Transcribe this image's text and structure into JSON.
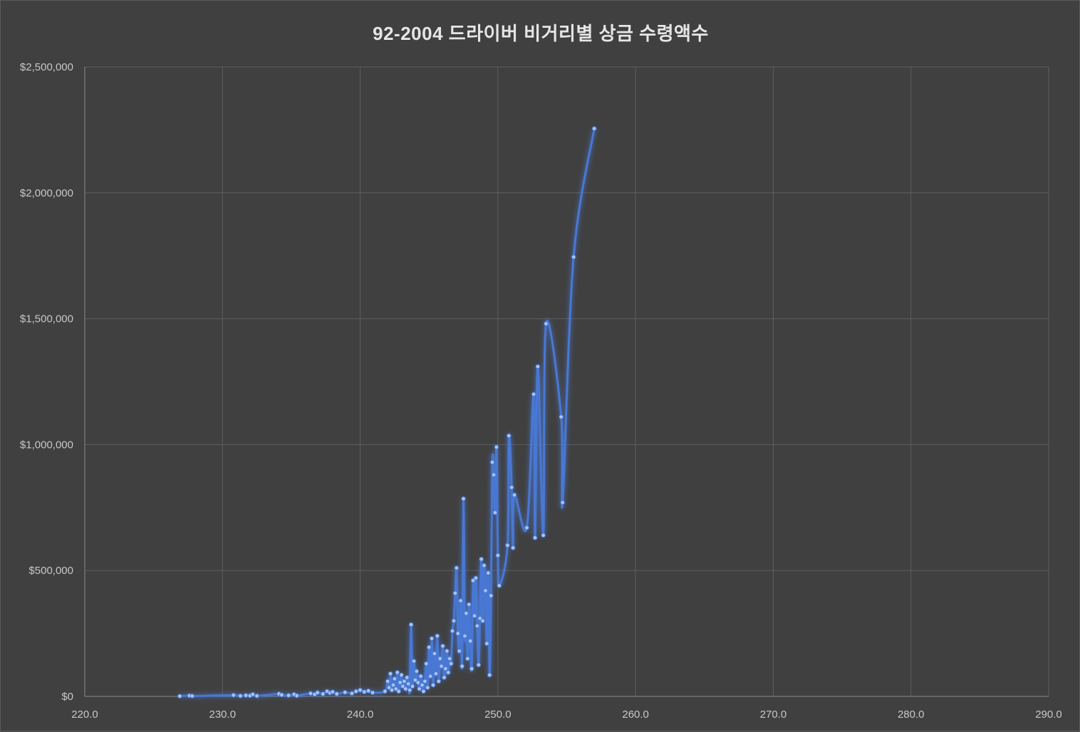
{
  "chart_data": {
    "type": "scatter",
    "title": "92-2004 드라이버 비거리별 상금 수령액수",
    "xlabel": "",
    "ylabel": "",
    "xlim": [
      220,
      290
    ],
    "ylim": [
      0,
      2500000
    ],
    "x_ticks": [
      "220.0",
      "230.0",
      "240.0",
      "250.0",
      "260.0",
      "270.0",
      "280.0",
      "290.0"
    ],
    "y_ticks": [
      "$0",
      "$500,000",
      "$1,000,000",
      "$1,500,000",
      "$2,000,000",
      "$2,500,000"
    ],
    "grid": true,
    "legend": "none",
    "line_color": "#4a78d4",
    "marker_color": "#a9c4f2",
    "series": [
      {
        "x": [
          226.9,
          227.6,
          227.8,
          230.8,
          231.3,
          231.7,
          232.0,
          232.2,
          232.5,
          234.1,
          234.3,
          234.8,
          235.2,
          235.4,
          236.4,
          236.7,
          236.9,
          237.3,
          237.6,
          237.8,
          238.0,
          238.3,
          238.9,
          239.4,
          239.7,
          240.0,
          240.3,
          240.6,
          240.9,
          241.8,
          242.0,
          242.1,
          242.2,
          242.3,
          242.4,
          242.5,
          242.6,
          242.7,
          242.8,
          242.9,
          243.0,
          243.1,
          243.2,
          243.3,
          243.4,
          243.5,
          243.6,
          243.7,
          243.8,
          243.9,
          244.0,
          244.1,
          244.2,
          244.3,
          244.4,
          244.5,
          244.6,
          244.7,
          244.8,
          244.9,
          245.0,
          245.1,
          245.2,
          245.3,
          245.4,
          245.5,
          245.6,
          245.7,
          245.8,
          245.9,
          246.0,
          246.1,
          246.2,
          246.3,
          246.4,
          246.5,
          246.6,
          246.7,
          246.8,
          246.9,
          247.0,
          247.1,
          247.2,
          247.3,
          247.4,
          247.5,
          247.6,
          247.7,
          247.8,
          247.9,
          248.0,
          248.1,
          248.2,
          248.3,
          248.4,
          248.5,
          248.6,
          248.7,
          248.8,
          248.9,
          249.0,
          249.1,
          249.2,
          249.3,
          249.4,
          249.5,
          249.6,
          249.7,
          249.8,
          249.9,
          250.0,
          250.1,
          250.7,
          250.8,
          251.0,
          251.1,
          251.2,
          252.1,
          252.6,
          252.7,
          252.9,
          253.3,
          253.5,
          254.6,
          254.7,
          255.5,
          257.0
        ],
        "y": [
          1000,
          3000,
          1500,
          5000,
          2000,
          4000,
          3000,
          8000,
          2000,
          10000,
          6000,
          4000,
          8000,
          3000,
          12000,
          8000,
          15000,
          10000,
          20000,
          14000,
          18000,
          10000,
          16000,
          12000,
          20000,
          25000,
          18000,
          22000,
          15000,
          20000,
          60000,
          35000,
          90000,
          25000,
          45000,
          70000,
          30000,
          95000,
          20000,
          55000,
          85000,
          40000,
          60000,
          30000,
          75000,
          50000,
          25000,
          285000,
          40000,
          140000,
          65000,
          100000,
          55000,
          30000,
          80000,
          45000,
          20000,
          60000,
          130000,
          35000,
          195000,
          80000,
          230000,
          45000,
          170000,
          90000,
          240000,
          60000,
          150000,
          120000,
          200000,
          75000,
          110000,
          180000,
          95000,
          150000,
          130000,
          260000,
          300000,
          410000,
          510000,
          250000,
          180000,
          380000,
          120000,
          785000,
          240000,
          330000,
          150000,
          365000,
          220000,
          110000,
          460000,
          320000,
          470000,
          280000,
          125000,
          310000,
          545000,
          300000,
          520000,
          420000,
          210000,
          490000,
          85000,
          400000,
          930000,
          880000,
          730000,
          990000,
          560000,
          440000,
          600000,
          1035000,
          830000,
          590000,
          800000,
          670000,
          1200000,
          630000,
          1310000,
          640000,
          1480000,
          1110000,
          770000,
          1745000,
          2255000
        ]
      }
    ]
  }
}
